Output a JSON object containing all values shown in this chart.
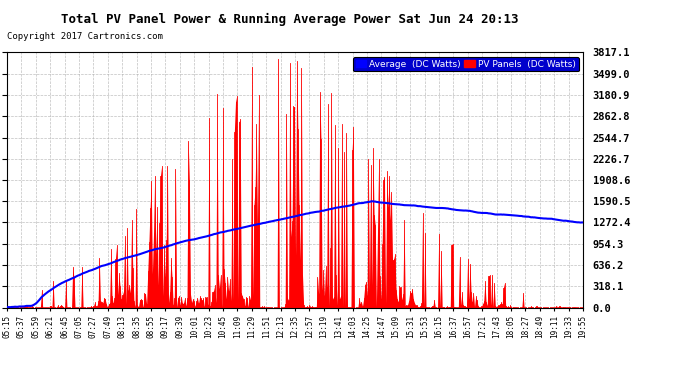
{
  "title": "Total PV Panel Power & Running Average Power Sat Jun 24 20:13",
  "copyright": "Copyright 2017 Cartronics.com",
  "background_color": "#ffffff",
  "plot_bg_color": "#ffffff",
  "grid_color": "#b0b0b0",
  "yticks": [
    0.0,
    318.1,
    636.2,
    954.3,
    1272.4,
    1590.5,
    1908.6,
    2226.7,
    2544.7,
    2862.8,
    3180.9,
    3499.0,
    3817.1
  ],
  "ymax": 3817.1,
  "bar_color": "#ff0000",
  "line_color": "#0000ff",
  "legend_avg_label": "Average  (DC Watts)",
  "legend_pv_label": "PV Panels  (DC Watts)",
  "xtick_labels": [
    "05:15",
    "05:37",
    "05:59",
    "06:21",
    "06:45",
    "07:05",
    "07:27",
    "07:49",
    "08:13",
    "08:35",
    "08:55",
    "09:17",
    "09:39",
    "10:01",
    "10:23",
    "10:45",
    "11:09",
    "11:29",
    "11:51",
    "12:13",
    "12:35",
    "12:57",
    "13:19",
    "13:41",
    "14:03",
    "14:25",
    "14:47",
    "15:09",
    "15:31",
    "15:53",
    "16:15",
    "16:37",
    "16:57",
    "17:21",
    "17:43",
    "18:05",
    "18:27",
    "18:49",
    "19:11",
    "19:33",
    "19:55"
  ]
}
